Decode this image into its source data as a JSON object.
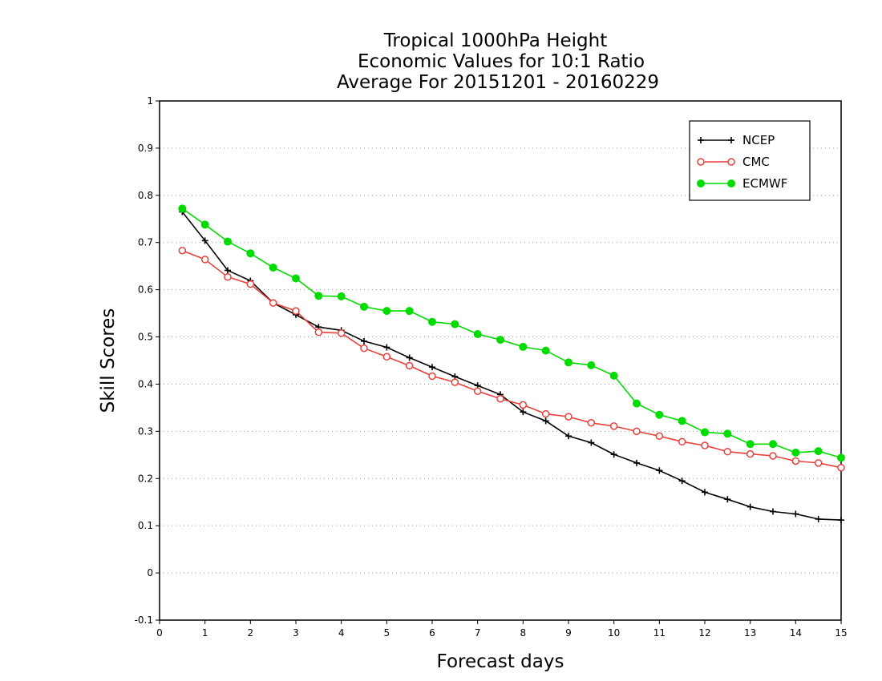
{
  "chart_data": {
    "type": "line",
    "title": [
      "Tropical 1000hPa Height",
      "Economic Values for 10:1 Ratio",
      "Average For 20151201 - 20160229"
    ],
    "xlabel": "Forecast days",
    "ylabel": "Skill Scores",
    "xlim": [
      0,
      15
    ],
    "ylim": [
      -0.1,
      1
    ],
    "xticks": [
      "0",
      "1",
      "2",
      "3",
      "4",
      "5",
      "6",
      "7",
      "8",
      "9",
      "10",
      "11",
      "12",
      "13",
      "14",
      "15"
    ],
    "yticks": [
      "-0.1",
      "0",
      "0.1",
      "0.2",
      "0.3",
      "0.4",
      "0.5",
      "0.6",
      "0.7",
      "0.8",
      "0.9",
      "1"
    ],
    "grid": "dotted horizontal",
    "legend_position": "top-right",
    "x": [
      0.5,
      1,
      1.5,
      2,
      2.5,
      3,
      3.5,
      4,
      4.5,
      5,
      5.5,
      6,
      6.5,
      7,
      7.5,
      8,
      8.5,
      9,
      9.5,
      10,
      10.5,
      11,
      11.5,
      12,
      12.5,
      13,
      13.5,
      14,
      14.5,
      15
    ],
    "series": [
      {
        "name": "NCEP",
        "color": "#000000",
        "marker": "plus",
        "values": [
          0.765,
          0.704,
          0.641,
          0.619,
          0.572,
          0.547,
          0.521,
          0.514,
          0.491,
          0.478,
          0.456,
          0.436,
          0.416,
          0.397,
          0.378,
          0.341,
          0.322,
          0.29,
          0.276,
          0.251,
          0.233,
          0.217,
          0.195,
          0.171,
          0.156,
          0.14,
          0.13,
          0.125,
          0.114,
          0.112
        ]
      },
      {
        "name": "CMC",
        "color": "#e8413c",
        "marker": "open-circle",
        "values": [
          0.683,
          0.664,
          0.627,
          0.612,
          0.572,
          0.555,
          0.51,
          0.508,
          0.476,
          0.458,
          0.439,
          0.417,
          0.404,
          0.385,
          0.369,
          0.356,
          0.337,
          0.331,
          0.318,
          0.311,
          0.3,
          0.29,
          0.278,
          0.27,
          0.257,
          0.252,
          0.248,
          0.237,
          0.233,
          0.223
        ]
      },
      {
        "name": "ECMWF",
        "color": "#00dc00",
        "marker": "filled-circle",
        "values": [
          0.772,
          0.738,
          0.702,
          0.677,
          0.647,
          0.624,
          0.587,
          0.586,
          0.564,
          0.555,
          0.555,
          0.532,
          0.527,
          0.506,
          0.494,
          0.479,
          0.471,
          0.446,
          0.44,
          0.418,
          0.359,
          0.335,
          0.322,
          0.298,
          0.295,
          0.273,
          0.273,
          0.255,
          0.258,
          0.244
        ]
      }
    ]
  }
}
